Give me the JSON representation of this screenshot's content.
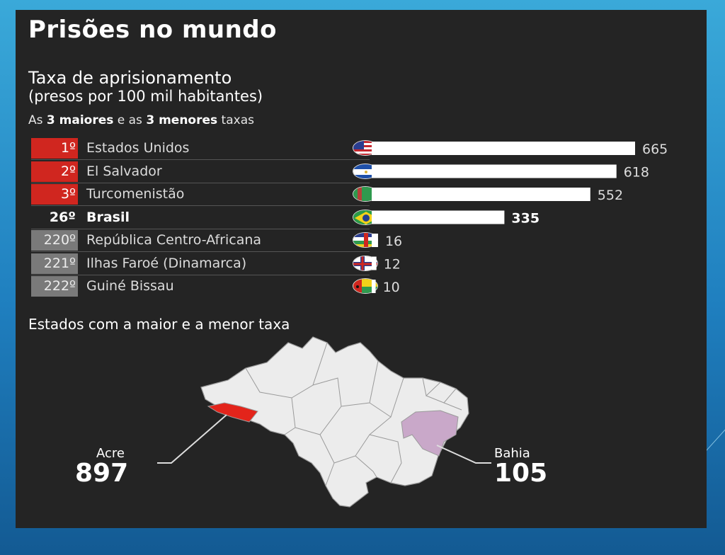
{
  "title": "Prisões no mundo",
  "subtitle_line1": "Taxa de aprisionamento",
  "subtitle_line2": "(presos por 100 mil habitantes)",
  "note": {
    "prefix": "As ",
    "top": "3 maiores",
    "middle": " e as ",
    "bottom": "3 menores",
    "suffix": " taxas"
  },
  "chart_data": {
    "type": "bar",
    "orientation": "horizontal",
    "title": "Taxa de aprisionamento",
    "rows": [
      {
        "rank": "1º",
        "country": "Estados Unidos",
        "value": 665,
        "group": "top",
        "flag": "usa-flag-icon"
      },
      {
        "rank": "2º",
        "country": "El Salvador",
        "value": 618,
        "group": "top",
        "flag": "el-salvador-flag-icon"
      },
      {
        "rank": "3º",
        "country": "Turcomenistão",
        "value": 552,
        "group": "top",
        "flag": "turkmenistan-flag-icon"
      },
      {
        "rank": "26º",
        "country": "Brasil",
        "value": 335,
        "group": "highlight",
        "flag": "brazil-flag-icon"
      },
      {
        "rank": "220º",
        "country": "República Centro-Africana",
        "value": 16,
        "group": "bottom",
        "flag": "car-flag-icon"
      },
      {
        "rank": "221º",
        "country": "Ilhas Faroé (Dinamarca)",
        "value": 12,
        "group": "bottom",
        "flag": "faroe-flag-icon"
      },
      {
        "rank": "222º",
        "country": "Guiné Bissau",
        "value": 10,
        "group": "bottom",
        "flag": "guinea-bissau-flag-icon"
      }
    ],
    "xlim": [
      0,
      665
    ],
    "grid": false,
    "colors": {
      "top_rank": "#d0261f",
      "bottom_rank": "#7a7a7a",
      "bar": "#ffffff",
      "acre": "#e3241b",
      "bahia": "#c9a8c9"
    }
  },
  "map": {
    "title": "Estados com a maior e a menor taxa",
    "max_state": {
      "name": "Acre",
      "value": "897"
    },
    "min_state": {
      "name": "Bahia",
      "value": "105"
    }
  }
}
